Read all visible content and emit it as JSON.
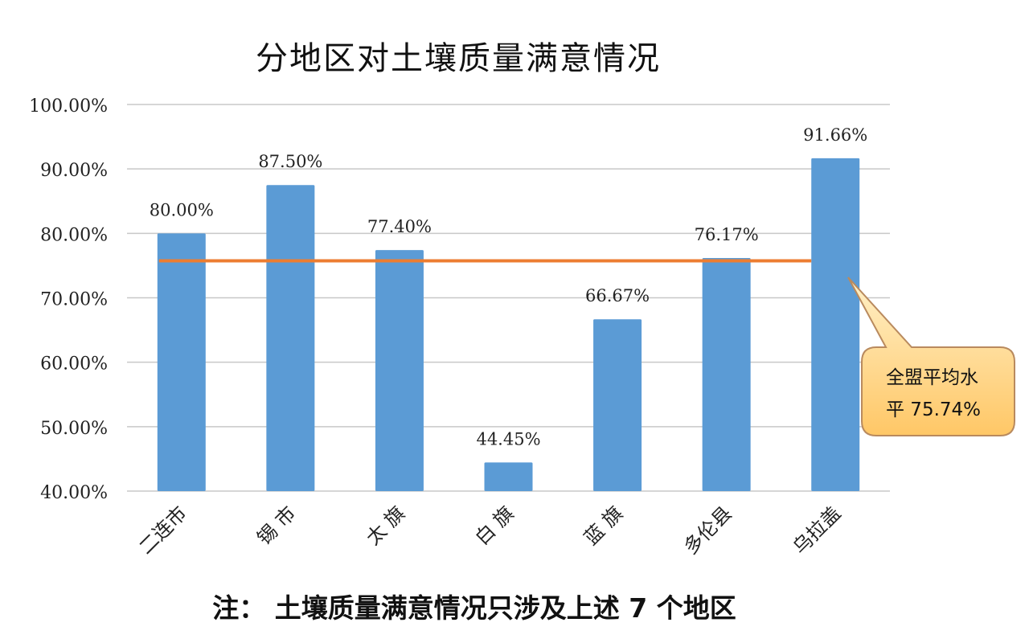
{
  "chart_data": {
    "type": "bar",
    "title": "分地区对土壤质量满意情况",
    "categories": [
      "二连市",
      "锡 市",
      "太 旗",
      "白 旗",
      "蓝 旗",
      "多伦县",
      "乌拉盖"
    ],
    "values": [
      80.0,
      87.5,
      77.4,
      44.45,
      66.67,
      76.17,
      91.66
    ],
    "data_labels": [
      "80.00%",
      "87.50%",
      "77.40%",
      "44.45%",
      "66.67%",
      "76.17%",
      "91.66%"
    ],
    "ylim": [
      40,
      100
    ],
    "y_ticks": [
      40,
      50,
      60,
      70,
      80,
      90,
      100
    ],
    "y_tick_labels": [
      "40.00%",
      "50.00%",
      "60.00%",
      "70.00%",
      "80.00%",
      "90.00%",
      "100.00%"
    ],
    "grid": true,
    "bar_color": "#5b9bd5",
    "average": {
      "value": 75.74,
      "color": "#ed7d31",
      "callout_line1": "全盟平均水",
      "callout_line2": "平 75.74%"
    },
    "callout_fill": "#ffd37a",
    "footnote": "注：  土壤质量满意情况只涉及上述 7 个地区"
  }
}
